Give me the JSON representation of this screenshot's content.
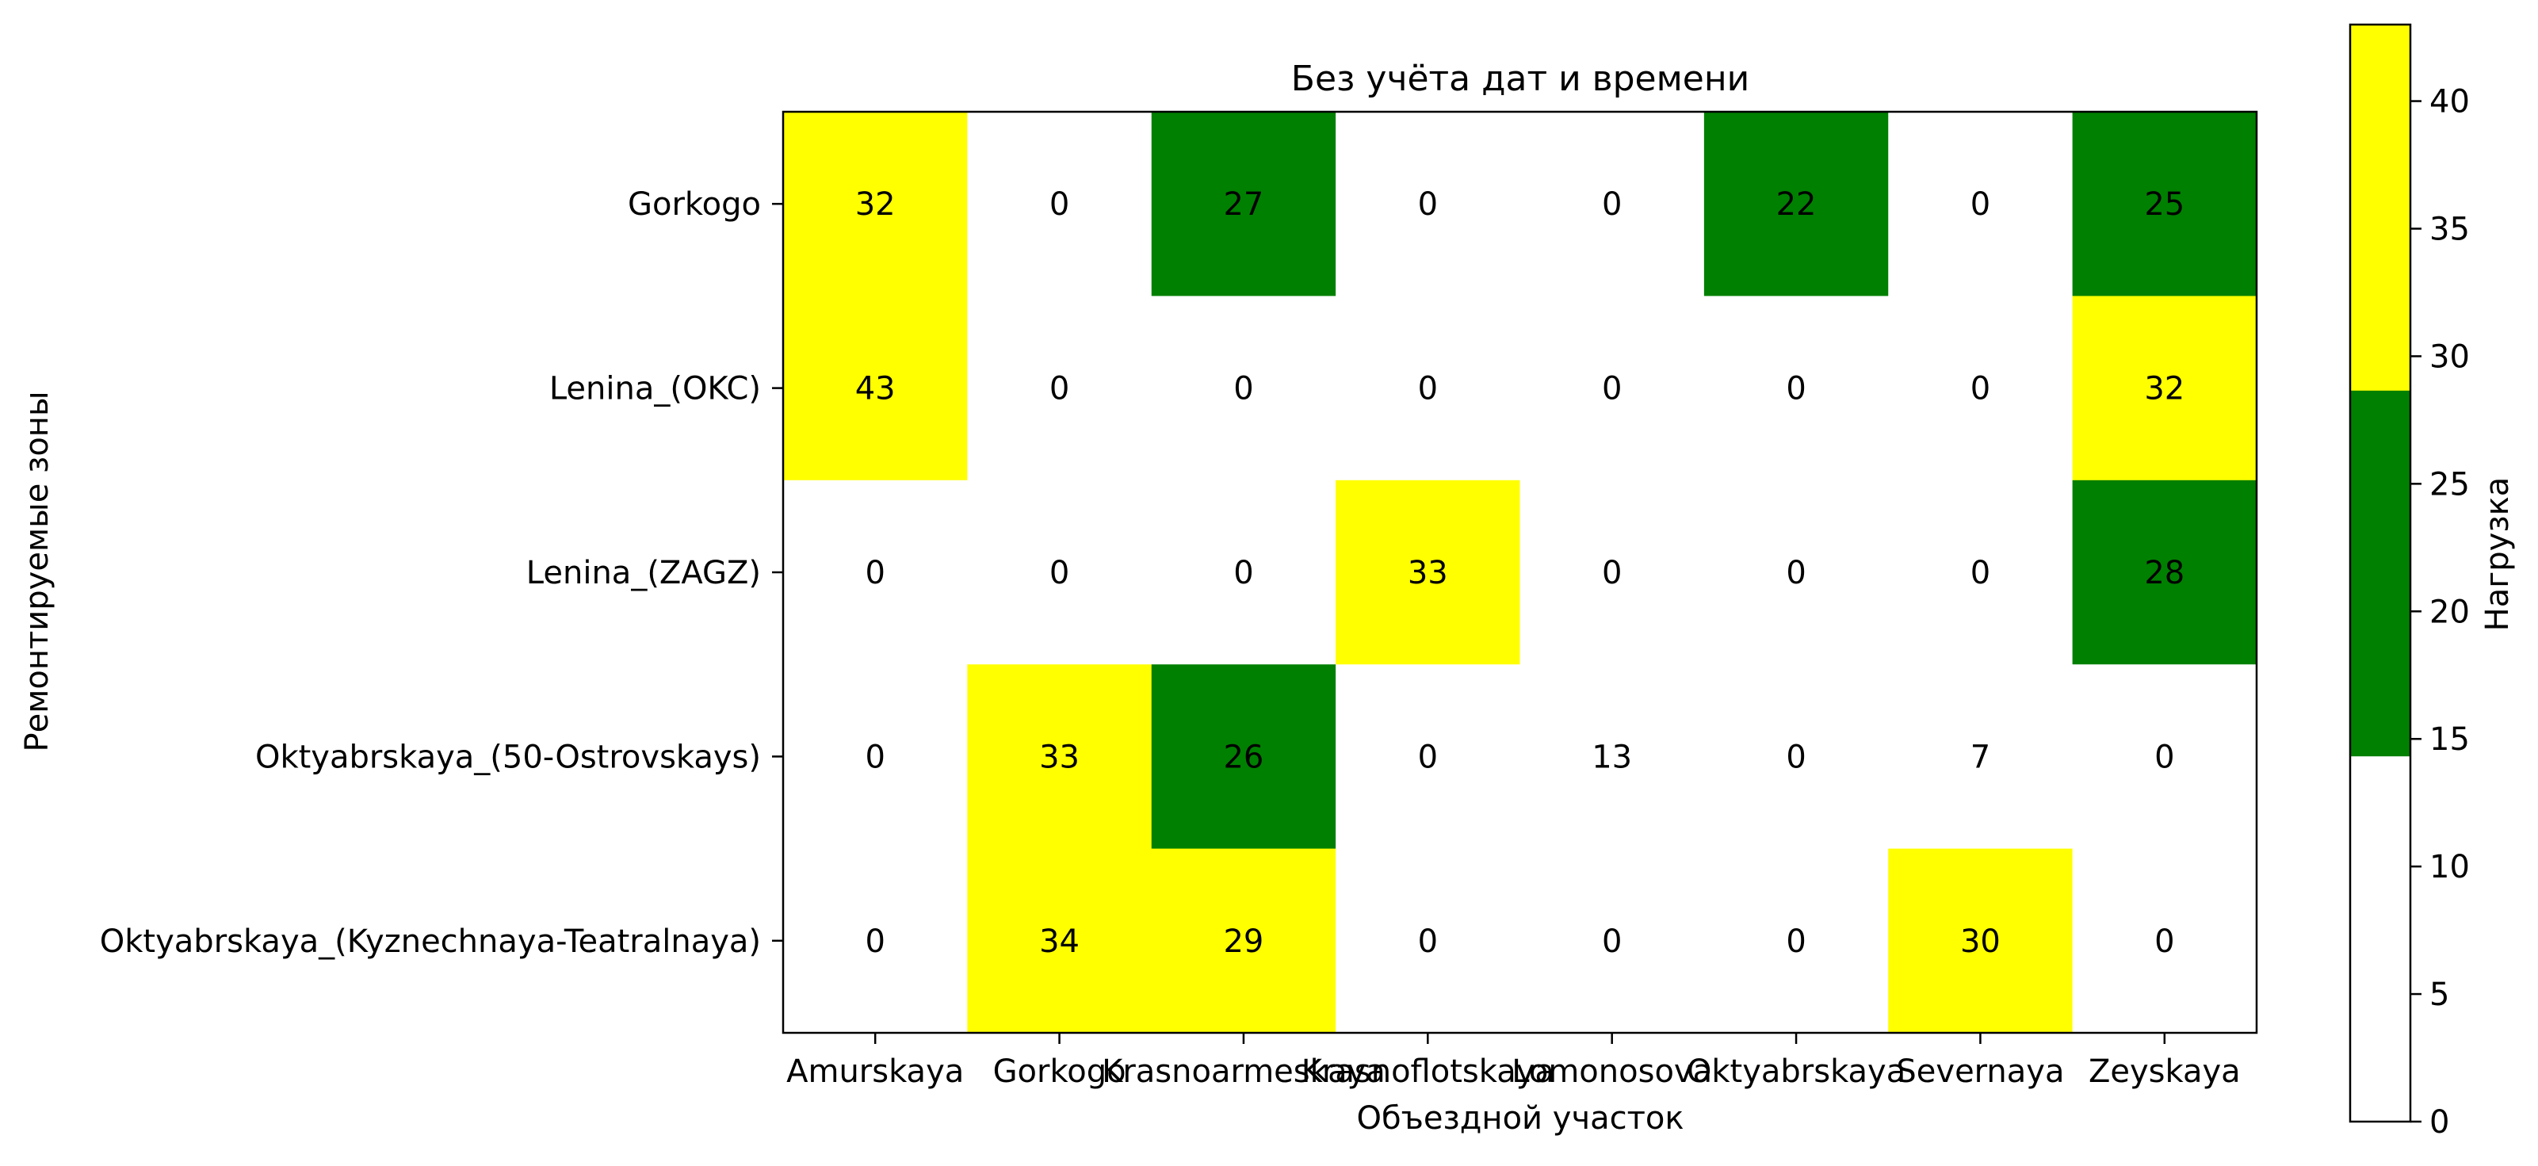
{
  "chart_data": {
    "type": "heatmap",
    "title": "Без учёта дат и времени",
    "xlabel": "Объездной участок",
    "ylabel": "Ремонтируемые зоны",
    "x_categories": [
      "Amurskaya",
      "Gorkogo",
      "Krasnoarmeskaya",
      "Krasnoflotskaya",
      "Lomonosova",
      "Oktyabrskaya",
      "Severnaya",
      "Zeyskaya"
    ],
    "y_categories": [
      "Gorkogo",
      "Lenina_(OKC)",
      "Lenina_(ZAGZ)",
      "Oktyabrskaya_(50-Ostrovskays)",
      "Oktyabrskaya_(Kyznechnaya-Teatralnaya)"
    ],
    "values": [
      [
        32,
        0,
        27,
        0,
        0,
        22,
        0,
        25
      ],
      [
        43,
        0,
        0,
        0,
        0,
        0,
        0,
        32
      ],
      [
        0,
        0,
        0,
        33,
        0,
        0,
        0,
        28
      ],
      [
        0,
        33,
        26,
        0,
        13,
        0,
        7,
        0
      ],
      [
        0,
        34,
        29,
        0,
        0,
        0,
        30,
        0
      ]
    ],
    "colorbar": {
      "label": "Нагрузка",
      "range": [
        0,
        43
      ],
      "ticks": [
        0,
        5,
        10,
        15,
        20,
        25,
        30,
        35,
        40
      ],
      "bins": [
        {
          "from": 0,
          "to": 14.333,
          "color": "#ffffff"
        },
        {
          "from": 14.333,
          "to": 28.667,
          "color": "#008000"
        },
        {
          "from": 28.667,
          "to": 43,
          "color": "#ffff00"
        }
      ]
    },
    "grid": false,
    "legend": "none"
  }
}
